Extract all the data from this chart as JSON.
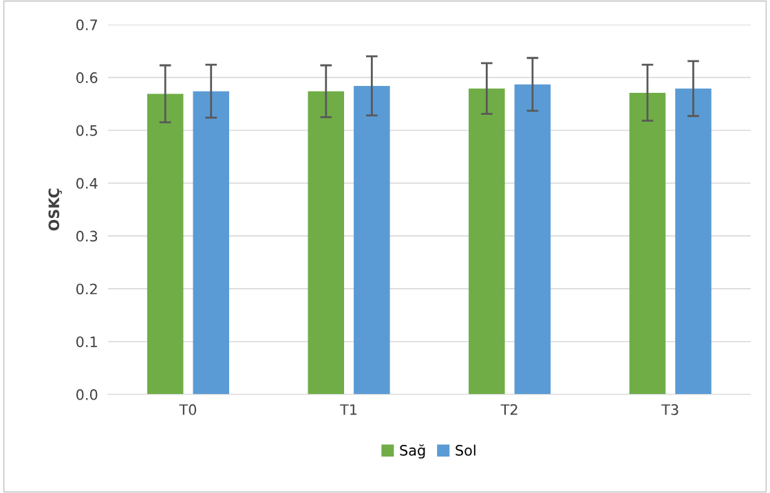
{
  "chart_data": {
    "type": "bar",
    "ylabel": "OSKÇ",
    "categories": [
      "T0",
      "T1",
      "T2",
      "T3"
    ],
    "series": [
      {
        "name": "Sağ",
        "color": "#70ad47",
        "values": [
          0.569,
          0.574,
          0.579,
          0.571
        ],
        "errors": [
          0.054,
          0.049,
          0.048,
          0.053
        ]
      },
      {
        "name": "Sol",
        "color": "#5b9bd5",
        "values": [
          0.574,
          0.584,
          0.587,
          0.579
        ],
        "errors": [
          0.05,
          0.056,
          0.05,
          0.052
        ]
      }
    ],
    "ylim": [
      0,
      0.7
    ],
    "yticks": [
      {
        "value": 0,
        "label": "0.0"
      },
      0.1,
      0.2,
      0.3,
      0.4,
      0.5,
      0.6,
      0.7
    ],
    "grid": "y",
    "legend": "bottom"
  }
}
